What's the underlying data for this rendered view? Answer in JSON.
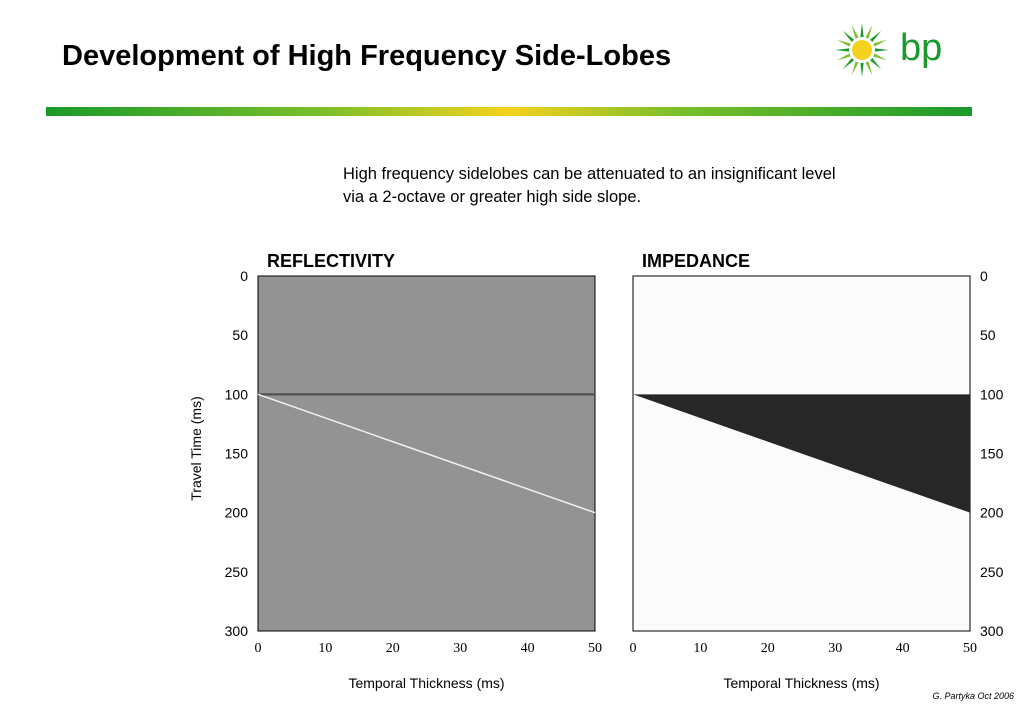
{
  "slide": {
    "title": "Development of High Frequency Side-Lobes",
    "caption_lines": [
      "High frequency sidelobes can be attenuated to an insignificant level",
      "via a 2-octave or greater high side slope."
    ],
    "credit": "G. Partyka Oct 2006",
    "logo_text": "bp"
  },
  "colors": {
    "reflectivity_bg": "#939393",
    "impedance_bg": "#fbfbfb",
    "impedance_fill": "#272727",
    "line_white": "#f2f2f2",
    "line_dark": "#4a4a4a",
    "bp_green": "#1a9a2a",
    "bp_yellow": "#f5d21e"
  },
  "chart_data": [
    {
      "type": "heatmap",
      "title": "REFLECTIVITY",
      "xlabel": "Temporal Thickness (ms)",
      "ylabel": "Travel Time (ms)",
      "xlim": [
        0,
        50
      ],
      "ylim": [
        0,
        300
      ],
      "y_inverted": true,
      "xticks": [
        0,
        10,
        20,
        30,
        40,
        50
      ],
      "yticks": [
        0,
        50,
        100,
        150,
        200,
        250,
        300
      ],
      "y_axis_side": "left",
      "top_reflector": {
        "x": [
          0,
          50
        ],
        "y": [
          100,
          100
        ]
      },
      "base_reflector": {
        "x": [
          0,
          50
        ],
        "y": [
          100,
          200
        ]
      }
    },
    {
      "type": "heatmap",
      "title": "IMPEDANCE",
      "xlabel": "Temporal Thickness (ms)",
      "ylabel": "",
      "xlim": [
        0,
        50
      ],
      "ylim": [
        0,
        300
      ],
      "y_inverted": true,
      "xticks": [
        0,
        10,
        20,
        30,
        40,
        50
      ],
      "yticks": [
        0,
        50,
        100,
        150,
        200,
        250,
        300
      ],
      "y_axis_side": "right",
      "wedge": {
        "x": [
          0,
          50,
          50
        ],
        "y": [
          100,
          100,
          200
        ]
      }
    }
  ]
}
